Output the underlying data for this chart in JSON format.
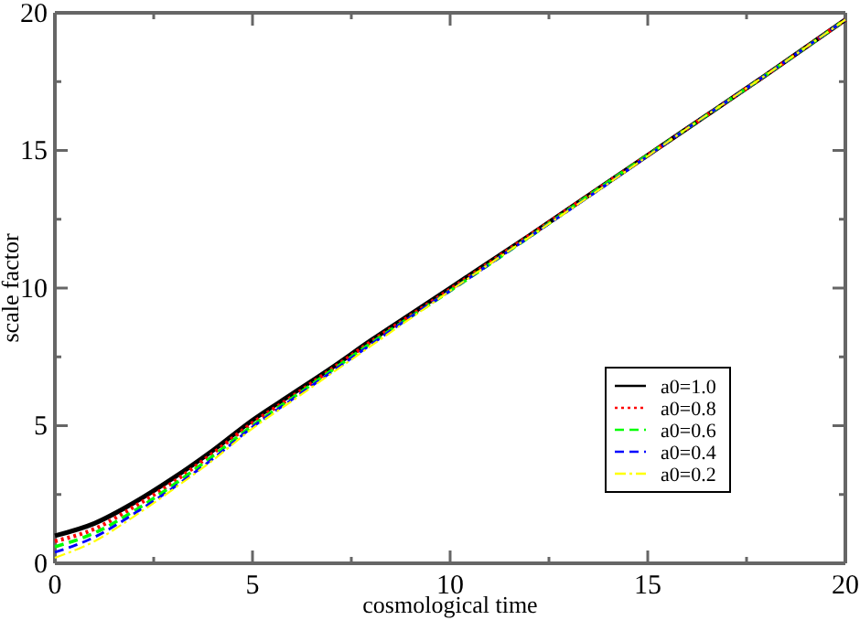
{
  "chart_data": {
    "type": "line",
    "xlabel": "cosmological time",
    "ylabel": "scale factor",
    "x": [
      0,
      1,
      2,
      3,
      4,
      5,
      6,
      7,
      8,
      9,
      10,
      12,
      14,
      16,
      18,
      20
    ],
    "xlim": [
      0,
      20
    ],
    "ylim": [
      0,
      20
    ],
    "xticks": [
      0,
      {
        "value": 2.5,
        "label": null
      },
      5,
      {
        "value": 7.5,
        "label": null
      },
      10,
      {
        "value": 12.5,
        "label": null
      },
      15,
      {
        "value": 17.5,
        "label": null
      },
      20
    ],
    "yticks": [
      0,
      {
        "value": 2.5,
        "label": null
      },
      5,
      {
        "value": 7.5,
        "label": null
      },
      10,
      {
        "value": 12.5,
        "label": null
      },
      15,
      {
        "value": 17.5,
        "label": null
      },
      20
    ],
    "grid": false,
    "legend": "bottom right",
    "marker": "none",
    "series": [
      {
        "name": "a0=1.0",
        "color": "#000000",
        "line_style": "solid",
        "values": [
          1.0,
          1.45,
          2.2,
          3.1,
          4.1,
          5.2,
          6.15,
          7.1,
          8.1,
          9.05,
          10.0,
          11.9,
          13.85,
          15.8,
          17.75,
          19.75
        ]
      },
      {
        "name": "a0=0.8",
        "color": "#ff0000",
        "line_style": "dotted",
        "values": [
          0.8,
          1.25,
          2.05,
          2.95,
          4.0,
          5.1,
          6.05,
          7.05,
          8.05,
          9.0,
          9.95,
          11.9,
          13.85,
          15.8,
          17.75,
          19.75
        ]
      },
      {
        "name": "a0=0.6",
        "color": "#00ff00",
        "line_style": "dashed",
        "values": [
          0.6,
          1.1,
          1.9,
          2.85,
          3.9,
          5.0,
          6.0,
          7.0,
          8.0,
          8.95,
          9.9,
          11.85,
          13.85,
          15.8,
          17.75,
          19.75
        ]
      },
      {
        "name": "a0=0.4",
        "color": "#0000ff",
        "line_style": "dashed",
        "values": [
          0.4,
          0.95,
          1.8,
          2.75,
          3.8,
          4.95,
          5.95,
          6.95,
          7.95,
          8.95,
          9.9,
          11.85,
          13.8,
          15.8,
          17.75,
          19.75
        ]
      },
      {
        "name": "a0=0.2",
        "color": "#ffff00",
        "line_style": "dashdot",
        "values": [
          0.2,
          0.8,
          1.7,
          2.7,
          3.75,
          4.9,
          5.9,
          6.9,
          7.9,
          8.9,
          9.9,
          11.85,
          13.8,
          15.8,
          17.75,
          19.75
        ]
      }
    ]
  }
}
